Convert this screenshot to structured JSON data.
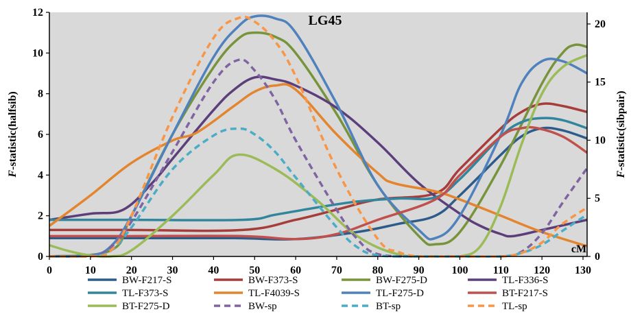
{
  "chart_data": {
    "type": "line",
    "title": "LG45",
    "xlabel": "cM",
    "ylabel_left": "F-statistic(halfsib)",
    "ylabel_right": "F-statistic(sibpair)",
    "ylabel_prefix": "F",
    "ylabel_left_suffix": "-statistic(halfsib)",
    "ylabel_right_suffix": "-statistic(sibpair)",
    "xlim": [
      0,
      131
    ],
    "ylim_left": [
      0,
      12
    ],
    "ylim_right": [
      0,
      21
    ],
    "x_ticks": [
      "0",
      "10",
      "20",
      "30",
      "40",
      "50",
      "60",
      "70",
      "80",
      "90",
      "100",
      "110",
      "120",
      "130"
    ],
    "y_ticks_left": [
      "0",
      "2",
      "4",
      "6",
      "8",
      "10",
      "12"
    ],
    "y_ticks_right": [
      "0",
      "5",
      "10",
      "15",
      "20"
    ],
    "grid": false,
    "background": "#d9d9d9",
    "legend_position": "bottom",
    "series": [
      {
        "name": "BW-F217-S",
        "color": "#2e5c8a",
        "dash": false,
        "axis": "left",
        "x": [
          0,
          20,
          45,
          60,
          75,
          85,
          94,
          100,
          110,
          115,
          120,
          125,
          131
        ],
        "y": [
          0.9,
          0.9,
          0.9,
          0.85,
          1.2,
          1.6,
          2.0,
          3.0,
          5.0,
          5.9,
          6.3,
          6.2,
          5.8
        ]
      },
      {
        "name": "BW-F373-S",
        "color": "#a63d3a",
        "dash": false,
        "axis": "left",
        "x": [
          0,
          20,
          47,
          60,
          70,
          80,
          94,
          100,
          110,
          115,
          120,
          125,
          131
        ],
        "y": [
          1.3,
          1.3,
          1.3,
          1.8,
          2.3,
          2.8,
          3.1,
          4.3,
          6.3,
          7.1,
          7.5,
          7.4,
          7.1
        ]
      },
      {
        "name": "BW-F275-D",
        "color": "#77933c",
        "dash": false,
        "axis": "left",
        "x": [
          0,
          15,
          20,
          30,
          40,
          46,
          50,
          55,
          60,
          70,
          80,
          90,
          94,
          100,
          110,
          120,
          125,
          128,
          131
        ],
        "y": [
          0.0,
          0.3,
          2.0,
          6.0,
          9.3,
          10.7,
          11.0,
          10.8,
          10.0,
          7.0,
          3.5,
          1.0,
          0.6,
          1.2,
          4.5,
          8.5,
          10.0,
          10.4,
          10.3
        ]
      },
      {
        "name": "TL-F336-S",
        "color": "#5c3e7a",
        "dash": false,
        "axis": "left",
        "x": [
          0,
          10,
          18,
          25,
          30,
          40,
          45,
          50,
          55,
          60,
          70,
          80,
          90,
          100,
          105,
          110,
          113,
          120,
          131
        ],
        "y": [
          1.8,
          2.1,
          2.3,
          3.6,
          4.8,
          7.2,
          8.2,
          8.8,
          8.7,
          8.4,
          7.3,
          5.6,
          3.6,
          2.1,
          1.5,
          1.1,
          1.0,
          1.3,
          1.8
        ]
      },
      {
        "name": "TL-F373-S",
        "color": "#31859c",
        "dash": false,
        "axis": "left",
        "x": [
          0,
          20,
          47,
          55,
          65,
          75,
          85,
          94,
          100,
          110,
          115,
          120,
          125,
          131
        ],
        "y": [
          1.8,
          1.8,
          1.8,
          2.05,
          2.4,
          2.7,
          2.85,
          2.9,
          3.8,
          5.9,
          6.6,
          6.8,
          6.7,
          6.3
        ]
      },
      {
        "name": "TL-F4039-S",
        "color": "#e2852e",
        "dash": false,
        "axis": "left",
        "x": [
          0,
          10,
          20,
          30,
          36,
          45,
          50,
          55,
          60,
          70,
          80,
          84,
          94,
          100,
          110,
          120,
          131
        ],
        "y": [
          1.5,
          3.0,
          4.6,
          5.7,
          6.1,
          7.4,
          8.1,
          8.4,
          8.2,
          6.0,
          4.1,
          3.6,
          3.2,
          2.8,
          2.0,
          1.2,
          0.5
        ]
      },
      {
        "name": "TL-F275-D",
        "color": "#4f81bd",
        "dash": false,
        "axis": "left",
        "x": [
          0,
          10,
          15,
          20,
          30,
          40,
          46,
          50,
          55,
          60,
          70,
          80,
          90,
          94,
          100,
          110,
          115,
          120,
          125,
          131
        ],
        "y": [
          0.0,
          0.05,
          0.5,
          2.0,
          6.0,
          9.8,
          11.3,
          11.8,
          11.7,
          11.0,
          7.5,
          3.5,
          1.3,
          0.9,
          2.0,
          6.0,
          8.5,
          9.6,
          9.6,
          9.0
        ]
      },
      {
        "name": "BT-F217-S",
        "color": "#c0504d",
        "dash": false,
        "axis": "left",
        "x": [
          0,
          20,
          47,
          60,
          70,
          80,
          94,
          100,
          110,
          115,
          119,
          125,
          131
        ],
        "y": [
          1.0,
          1.0,
          1.0,
          0.85,
          1.1,
          1.8,
          2.8,
          4.0,
          5.9,
          6.3,
          6.3,
          5.9,
          5.1
        ]
      },
      {
        "name": "BT-F275-D",
        "color": "#9bbb59",
        "dash": false,
        "axis": "left",
        "x": [
          0,
          5,
          10,
          15,
          20,
          30,
          40,
          46,
          55,
          65,
          75,
          85,
          94,
          100,
          105,
          110,
          115,
          120,
          125,
          131
        ],
        "y": [
          0.55,
          0.25,
          0.05,
          0.0,
          0.3,
          2.0,
          4.0,
          5.0,
          4.3,
          2.8,
          1.0,
          0.1,
          0.0,
          0.0,
          0.5,
          2.5,
          5.5,
          8.0,
          9.3,
          9.9
        ]
      },
      {
        "name": "BW-sp",
        "color": "#8064a2",
        "dash": true,
        "axis": "right",
        "x": [
          0,
          10,
          15,
          20,
          30,
          40,
          46,
          50,
          55,
          60,
          70,
          75,
          80,
          90,
          100,
          110,
          115,
          120,
          125,
          131
        ],
        "y": [
          0.0,
          0.0,
          0.8,
          3.0,
          9.0,
          15.0,
          16.9,
          16.0,
          13.5,
          10.0,
          4.0,
          1.5,
          0.2,
          0.0,
          0.0,
          0.0,
          0.4,
          2.0,
          4.6,
          7.6
        ]
      },
      {
        "name": "BT-sp",
        "color": "#4bacc6",
        "dash": true,
        "axis": "right",
        "x": [
          0,
          10,
          15,
          20,
          30,
          40,
          46,
          50,
          55,
          60,
          70,
          75,
          80,
          90,
          100,
          110,
          115,
          120,
          125,
          131
        ],
        "y": [
          0.0,
          0.0,
          0.5,
          2.5,
          7.5,
          10.4,
          11.0,
          10.5,
          9.0,
          6.8,
          2.5,
          0.8,
          0.1,
          0.0,
          0.0,
          0.0,
          0.3,
          1.0,
          2.2,
          3.6
        ]
      },
      {
        "name": "TL-sp",
        "color": "#f79646",
        "dash": true,
        "axis": "right",
        "x": [
          0,
          10,
          15,
          20,
          30,
          40,
          46,
          50,
          55,
          60,
          70,
          80,
          85,
          90,
          100,
          110,
          115,
          120,
          125,
          131
        ],
        "y": [
          0.0,
          0.0,
          0.5,
          3.5,
          12.0,
          18.8,
          20.5,
          20.2,
          18.5,
          15.5,
          7.5,
          1.5,
          0.4,
          0.0,
          0.0,
          0.0,
          0.3,
          1.2,
          2.8,
          4.2
        ]
      }
    ]
  }
}
